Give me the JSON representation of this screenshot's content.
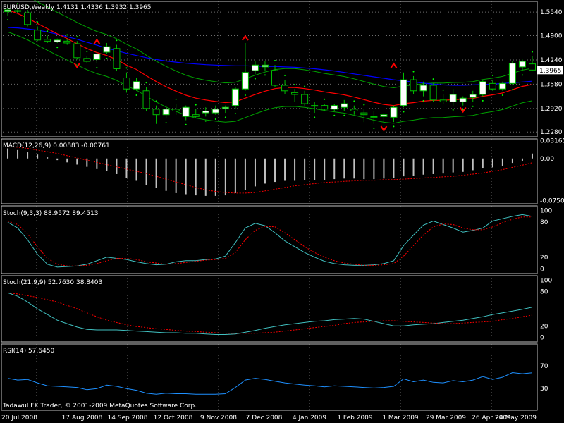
{
  "header": {
    "symbol_line": "EURUSD,Weekly  1.4131 1.4336 1.3932 1.3965",
    "macd_line": "MACD(12,26,9) 0.00883 -0.00761",
    "stoch1_line": "Stoch(9,3,3) 88.9572 89.4513",
    "stoch2_line": "Stoch(21,9,9) 52.7630 38.8403",
    "rsi_line": "RSI(14) 57.6450",
    "copyright": "Tadawul FX Trader, © 2001-2009 MetaQuotes Software Corp."
  },
  "colors": {
    "background": "#000000",
    "grid": "#6e6e6e",
    "bull_candle": "#ffffff",
    "bear_candle": "#000000",
    "candle_outline": "#00c000",
    "ma_blue": "#0000ff",
    "ma_red": "#ff0000",
    "bands_green": "#00a000",
    "sar_green": "#00ff00",
    "fractal_red": "#ff0000",
    "macd_hist": "#c0c0c0",
    "macd_signal": "#ff0000",
    "stoch_main": "#40c0c0",
    "stoch_signal": "#ff0000",
    "rsi_line": "#1e90ff"
  },
  "chart_data": [
    {
      "type": "candlestick",
      "title": "EURUSD,Weekly",
      "ohlc_last": {
        "open": 1.4131,
        "high": 1.4336,
        "low": 1.3932,
        "close": 1.3965
      },
      "current_price_label": "1.3965",
      "y_ticks": [
        "1.5540",
        "1.4900",
        "1.4240",
        "1.3580",
        "1.2920",
        "1.2280"
      ],
      "ylim": [
        1.228,
        1.554
      ],
      "x_ticks": [
        "20 Jul 2008",
        "17 Aug 2008",
        "14 Sep 2008",
        "12 Oct 2008",
        "9 Nov 2008",
        "7 Dec 2008",
        "4 Jan 2009",
        "1 Feb 2009",
        "1 Mar 2009",
        "29 Mar 2009",
        "26 Apr 2009",
        "24 May 2009"
      ],
      "candles": [
        {
          "o": 1.555,
          "h": 1.575,
          "l": 1.545,
          "c": 1.56
        },
        {
          "o": 1.558,
          "h": 1.565,
          "l": 1.552,
          "c": 1.556
        },
        {
          "o": 1.552,
          "h": 1.56,
          "l": 1.515,
          "c": 1.52
        },
        {
          "o": 1.505,
          "h": 1.515,
          "l": 1.475,
          "c": 1.478
        },
        {
          "o": 1.48,
          "h": 1.49,
          "l": 1.47,
          "c": 1.475
        },
        {
          "o": 1.473,
          "h": 1.482,
          "l": 1.47,
          "c": 1.478
        },
        {
          "o": 1.475,
          "h": 1.48,
          "l": 1.465,
          "c": 1.47
        },
        {
          "o": 1.468,
          "h": 1.475,
          "l": 1.425,
          "c": 1.43
        },
        {
          "o": 1.428,
          "h": 1.435,
          "l": 1.415,
          "c": 1.42
        },
        {
          "o": 1.425,
          "h": 1.445,
          "l": 1.415,
          "c": 1.44
        },
        {
          "o": 1.445,
          "h": 1.47,
          "l": 1.44,
          "c": 1.46
        },
        {
          "o": 1.455,
          "h": 1.465,
          "l": 1.395,
          "c": 1.4
        },
        {
          "o": 1.375,
          "h": 1.39,
          "l": 1.335,
          "c": 1.345
        },
        {
          "o": 1.345,
          "h": 1.375,
          "l": 1.34,
          "c": 1.365
        },
        {
          "o": 1.34,
          "h": 1.35,
          "l": 1.285,
          "c": 1.292
        },
        {
          "o": 1.29,
          "h": 1.3,
          "l": 1.25,
          "c": 1.275
        },
        {
          "o": 1.275,
          "h": 1.3,
          "l": 1.265,
          "c": 1.29
        },
        {
          "o": 1.29,
          "h": 1.305,
          "l": 1.275,
          "c": 1.285
        },
        {
          "o": 1.27,
          "h": 1.3,
          "l": 1.26,
          "c": 1.295
        },
        {
          "o": 1.275,
          "h": 1.29,
          "l": 1.265,
          "c": 1.27
        },
        {
          "o": 1.28,
          "h": 1.295,
          "l": 1.27,
          "c": 1.285
        },
        {
          "o": 1.28,
          "h": 1.3,
          "l": 1.275,
          "c": 1.29
        },
        {
          "o": 1.292,
          "h": 1.3,
          "l": 1.28,
          "c": 1.295
        },
        {
          "o": 1.3,
          "h": 1.35,
          "l": 1.29,
          "c": 1.345
        },
        {
          "o": 1.345,
          "h": 1.47,
          "l": 1.34,
          "c": 1.39
        },
        {
          "o": 1.395,
          "h": 1.42,
          "l": 1.385,
          "c": 1.41
        },
        {
          "o": 1.405,
          "h": 1.42,
          "l": 1.395,
          "c": 1.41
        },
        {
          "o": 1.395,
          "h": 1.41,
          "l": 1.35,
          "c": 1.355
        },
        {
          "o": 1.355,
          "h": 1.37,
          "l": 1.33,
          "c": 1.34
        },
        {
          "o": 1.335,
          "h": 1.345,
          "l": 1.31,
          "c": 1.33
        },
        {
          "o": 1.33,
          "h": 1.34,
          "l": 1.3,
          "c": 1.305
        },
        {
          "o": 1.3,
          "h": 1.31,
          "l": 1.28,
          "c": 1.3
        },
        {
          "o": 1.3,
          "h": 1.305,
          "l": 1.285,
          "c": 1.29
        },
        {
          "o": 1.29,
          "h": 1.305,
          "l": 1.285,
          "c": 1.3
        },
        {
          "o": 1.295,
          "h": 1.315,
          "l": 1.285,
          "c": 1.305
        },
        {
          "o": 1.29,
          "h": 1.3,
          "l": 1.275,
          "c": 1.285
        },
        {
          "o": 1.28,
          "h": 1.29,
          "l": 1.255,
          "c": 1.275
        },
        {
          "o": 1.27,
          "h": 1.285,
          "l": 1.25,
          "c": 1.27
        },
        {
          "o": 1.27,
          "h": 1.28,
          "l": 1.25,
          "c": 1.275
        },
        {
          "o": 1.268,
          "h": 1.3,
          "l": 1.255,
          "c": 1.295
        },
        {
          "o": 1.3,
          "h": 1.39,
          "l": 1.295,
          "c": 1.37
        },
        {
          "o": 1.37,
          "h": 1.38,
          "l": 1.33,
          "c": 1.34
        },
        {
          "o": 1.34,
          "h": 1.365,
          "l": 1.325,
          "c": 1.355
        },
        {
          "o": 1.355,
          "h": 1.36,
          "l": 1.31,
          "c": 1.315
        },
        {
          "o": 1.315,
          "h": 1.33,
          "l": 1.305,
          "c": 1.31
        },
        {
          "o": 1.31,
          "h": 1.345,
          "l": 1.3,
          "c": 1.33
        },
        {
          "o": 1.31,
          "h": 1.325,
          "l": 1.3,
          "c": 1.32
        },
        {
          "o": 1.322,
          "h": 1.34,
          "l": 1.31,
          "c": 1.33
        },
        {
          "o": 1.33,
          "h": 1.37,
          "l": 1.325,
          "c": 1.365
        },
        {
          "o": 1.36,
          "h": 1.37,
          "l": 1.34,
          "c": 1.345
        },
        {
          "o": 1.345,
          "h": 1.365,
          "l": 1.34,
          "c": 1.36
        },
        {
          "o": 1.36,
          "h": 1.42,
          "l": 1.355,
          "c": 1.415
        },
        {
          "o": 1.405,
          "h": 1.425,
          "l": 1.395,
          "c": 1.42
        },
        {
          "o": 1.4131,
          "h": 1.4336,
          "l": 1.3932,
          "c": 1.3965
        }
      ],
      "series": [
        {
          "name": "",
          "color": "#0000ff",
          "values": [
            1.512,
            1.511,
            1.508,
            1.505,
            1.5,
            1.494,
            1.487,
            1.48,
            1.472,
            1.464,
            1.456,
            1.449,
            1.442,
            1.436,
            1.43,
            1.425,
            1.421,
            1.418,
            1.415,
            1.413,
            1.411,
            1.41,
            1.409,
            1.408,
            1.408,
            1.407,
            1.406,
            1.406,
            1.405,
            1.404,
            1.402,
            1.4,
            1.397,
            1.394,
            1.39,
            1.386,
            1.382,
            1.378,
            1.374,
            1.37,
            1.367,
            1.364,
            1.361,
            1.358,
            1.356,
            1.355,
            1.355,
            1.356,
            1.357,
            1.358,
            1.36,
            1.362,
            1.364,
            1.366
          ]
        },
        {
          "name": "",
          "color": "#ff0000",
          "values": [
            1.56,
            1.55,
            1.538,
            1.523,
            1.509,
            1.495,
            1.482,
            1.468,
            1.455,
            1.444,
            1.436,
            1.425,
            1.41,
            1.398,
            1.381,
            1.365,
            1.351,
            1.339,
            1.328,
            1.32,
            1.315,
            1.311,
            1.308,
            1.31,
            1.32,
            1.33,
            1.339,
            1.346,
            1.349,
            1.349,
            1.346,
            1.342,
            1.337,
            1.333,
            1.329,
            1.323,
            1.316,
            1.309,
            1.303,
            1.3,
            1.305,
            1.308,
            1.312,
            1.314,
            1.314,
            1.316,
            1.317,
            1.319,
            1.325,
            1.329,
            1.334,
            1.343,
            1.352,
            1.357
          ]
        }
      ]
    },
    {
      "type": "bar",
      "title": "MACD(12,26,9)",
      "values_label": "0.00883 -0.00761",
      "y_ticks": [
        "0.03165",
        "0.00",
        "-0.07503"
      ],
      "ylim": [
        -0.07503,
        0.03165
      ],
      "histogram": [
        0.018,
        0.015,
        0.011,
        0.007,
        0.002,
        -0.003,
        -0.007,
        -0.011,
        -0.015,
        -0.019,
        -0.022,
        -0.028,
        -0.035,
        -0.04,
        -0.047,
        -0.053,
        -0.058,
        -0.062,
        -0.064,
        -0.066,
        -0.067,
        -0.067,
        -0.066,
        -0.062,
        -0.056,
        -0.05,
        -0.045,
        -0.042,
        -0.04,
        -0.04,
        -0.039,
        -0.039,
        -0.039,
        -0.037,
        -0.036,
        -0.036,
        -0.037,
        -0.037,
        -0.036,
        -0.035,
        -0.032,
        -0.031,
        -0.029,
        -0.028,
        -0.027,
        -0.025,
        -0.024,
        -0.021,
        -0.018,
        -0.016,
        -0.013,
        -0.008,
        -0.004,
        0.00883
      ],
      "signal": [
        0.021,
        0.02,
        0.018,
        0.015,
        0.012,
        0.009,
        0.005,
        0.001,
        -0.003,
        -0.007,
        -0.011,
        -0.015,
        -0.019,
        -0.023,
        -0.027,
        -0.032,
        -0.037,
        -0.042,
        -0.047,
        -0.052,
        -0.056,
        -0.059,
        -0.061,
        -0.062,
        -0.062,
        -0.061,
        -0.058,
        -0.055,
        -0.052,
        -0.049,
        -0.047,
        -0.045,
        -0.043,
        -0.042,
        -0.041,
        -0.04,
        -0.039,
        -0.039,
        -0.038,
        -0.038,
        -0.037,
        -0.036,
        -0.035,
        -0.034,
        -0.033,
        -0.032,
        -0.03,
        -0.028,
        -0.026,
        -0.023,
        -0.02,
        -0.016,
        -0.012,
        -0.00761
      ]
    },
    {
      "type": "line",
      "title": "Stoch(9,3,3)",
      "values_label": "88.9572 89.4513",
      "y_ticks": [
        "100",
        "80",
        "20",
        "0"
      ],
      "ylim": [
        0,
        100
      ],
      "series": [
        {
          "name": "",
          "color": "#40c0c0",
          "values": [
            80,
            70,
            50,
            25,
            8,
            3,
            4,
            5,
            8,
            14,
            20,
            18,
            16,
            12,
            9,
            7,
            8,
            12,
            14,
            14,
            16,
            17,
            22,
            45,
            70,
            78,
            74,
            62,
            48,
            38,
            28,
            20,
            13,
            9,
            7,
            6,
            6,
            7,
            9,
            14,
            40,
            58,
            75,
            82,
            76,
            70,
            63,
            66,
            70,
            82,
            86,
            90,
            93,
            90
          ]
        },
        {
          "name": "",
          "color": "#ff0000",
          "values": [
            82,
            76,
            60,
            38,
            18,
            8,
            5,
            5,
            6,
            9,
            14,
            18,
            18,
            16,
            12,
            10,
            8,
            9,
            11,
            13,
            15,
            16,
            18,
            28,
            50,
            66,
            73,
            72,
            62,
            50,
            38,
            28,
            20,
            14,
            10,
            8,
            6,
            6,
            7,
            9,
            22,
            40,
            58,
            72,
            77,
            76,
            70,
            67,
            67,
            72,
            79,
            85,
            89,
            89
          ]
        }
      ]
    },
    {
      "type": "line",
      "title": "Stoch(21,9,9)",
      "values_label": "52.7630 38.8403",
      "y_ticks": [
        "100",
        "80",
        "20",
        "0"
      ],
      "ylim": [
        0,
        100
      ],
      "series": [
        {
          "name": "",
          "color": "#40c0c0",
          "values": [
            78,
            72,
            62,
            50,
            40,
            30,
            24,
            18,
            14,
            13,
            13,
            13,
            12,
            11,
            10,
            9,
            8,
            8,
            7,
            7,
            6,
            5,
            5,
            6,
            9,
            12,
            16,
            19,
            22,
            24,
            26,
            28,
            29,
            31,
            32,
            33,
            32,
            28,
            24,
            20,
            20,
            22,
            23,
            24,
            26,
            28,
            30,
            33,
            36,
            40,
            43,
            46,
            49,
            52.76
          ]
        },
        {
          "name": "",
          "color": "#ff0000",
          "values": [
            78,
            76,
            73,
            70,
            66,
            62,
            56,
            50,
            43,
            36,
            30,
            26,
            22,
            19,
            17,
            15,
            14,
            12,
            11,
            10,
            9,
            8,
            7,
            7,
            7,
            7,
            8,
            9,
            11,
            13,
            15,
            17,
            19,
            21,
            24,
            26,
            27,
            28,
            29,
            29,
            28,
            27,
            26,
            25,
            24,
            24,
            25,
            26,
            27,
            28,
            31,
            33,
            36,
            38.84
          ]
        }
      ]
    },
    {
      "type": "line",
      "title": "RSI(14)",
      "values_label": "57.6450",
      "y_ticks": [
        "70",
        "30"
      ],
      "ylim": [
        0,
        100
      ],
      "series": [
        {
          "name": "",
          "color": "#1e90ff",
          "values": [
            48,
            45,
            46,
            40,
            35,
            34,
            33,
            32,
            28,
            30,
            36,
            34,
            30,
            27,
            22,
            20,
            22,
            21,
            21,
            20,
            20,
            20,
            21,
            32,
            45,
            48,
            46,
            43,
            40,
            38,
            36,
            35,
            33,
            35,
            34,
            33,
            32,
            31,
            32,
            34,
            47,
            42,
            45,
            41,
            40,
            44,
            42,
            45,
            51,
            46,
            50,
            58,
            56,
            57.645
          ]
        }
      ]
    }
  ]
}
